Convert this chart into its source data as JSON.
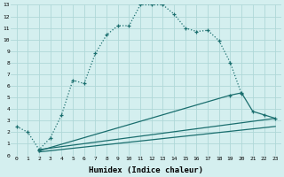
{
  "xlabel": "Humidex (Indice chaleur)",
  "bg_color": "#d4efef",
  "grid_color": "#afd8d8",
  "line_color": "#1a6e6e",
  "xlim": [
    -0.5,
    23.5
  ],
  "ylim": [
    0,
    13
  ],
  "xticks": [
    0,
    1,
    2,
    3,
    4,
    5,
    6,
    7,
    8,
    9,
    10,
    11,
    12,
    13,
    14,
    15,
    16,
    17,
    18,
    19,
    20,
    21,
    22,
    23
  ],
  "yticks": [
    0,
    1,
    2,
    3,
    4,
    5,
    6,
    7,
    8,
    9,
    10,
    11,
    12,
    13
  ],
  "curve1_x": [
    0,
    1,
    2,
    3,
    4,
    5,
    6,
    7,
    8,
    9,
    10,
    11,
    12,
    13,
    14,
    15,
    16,
    17,
    18,
    19,
    20,
    21,
    22,
    23
  ],
  "curve1_y": [
    2.5,
    2.0,
    0.5,
    1.5,
    3.5,
    6.5,
    6.2,
    8.8,
    10.4,
    11.2,
    11.2,
    13.0,
    13.0,
    13.0,
    12.2,
    11.0,
    10.7,
    10.8,
    9.9,
    8.0,
    5.3,
    null,
    null,
    null
  ],
  "curve2_x": [
    2,
    23
  ],
  "curve2_y": [
    0.5,
    3.2
  ],
  "curve3_x": [
    2,
    23
  ],
  "curve3_y": [
    0.3,
    2.5
  ],
  "curve4_x": [
    2,
    19,
    20,
    21,
    22,
    23
  ],
  "curve4_y": [
    0.4,
    5.2,
    5.4,
    3.8,
    3.5,
    3.2
  ]
}
